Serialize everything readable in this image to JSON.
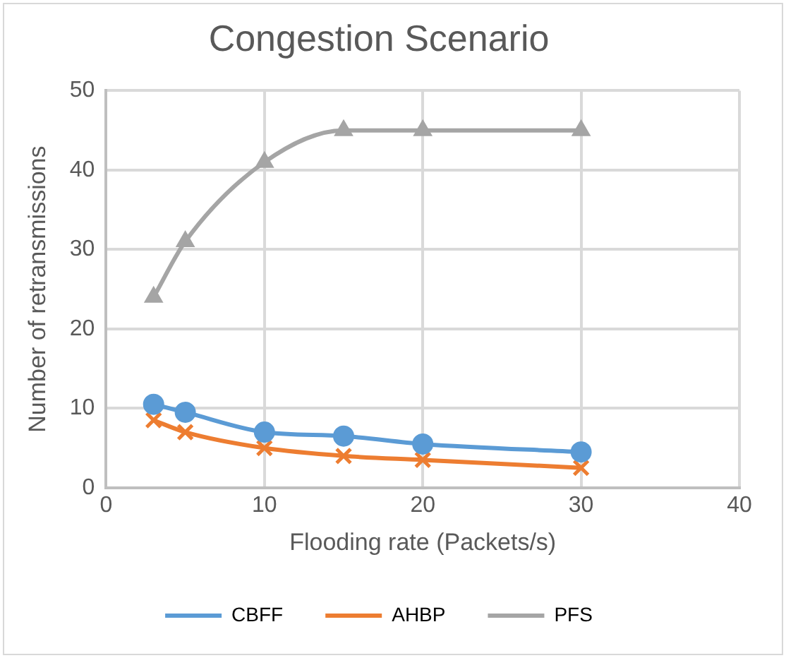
{
  "chart_data": {
    "type": "line",
    "title": "Congestion Scenario",
    "xlabel": "Flooding rate (Packets/s)",
    "ylabel": "Number of retransmissions",
    "x": [
      3,
      5,
      10,
      15,
      20,
      30
    ],
    "series": [
      {
        "name": "CBFF",
        "color": "#5b9bd5",
        "marker": "circle",
        "values": [
          10.5,
          9.5,
          7,
          6.5,
          5.5,
          4.5
        ]
      },
      {
        "name": "AHBP",
        "color": "#ed7d31",
        "marker": "cross",
        "values": [
          8.5,
          7,
          5,
          4,
          3.5,
          2.5
        ]
      },
      {
        "name": "PFS",
        "color": "#a5a5a5",
        "marker": "triangle",
        "values": [
          24,
          31,
          41,
          45,
          45,
          45
        ]
      }
    ],
    "xlim": [
      0,
      40
    ],
    "xticks": [
      0,
      10,
      20,
      30,
      40
    ],
    "ylim": [
      0,
      50
    ],
    "yticks": [
      0,
      10,
      20,
      30,
      40,
      50
    ],
    "grid": true,
    "legend": "bottom"
  }
}
